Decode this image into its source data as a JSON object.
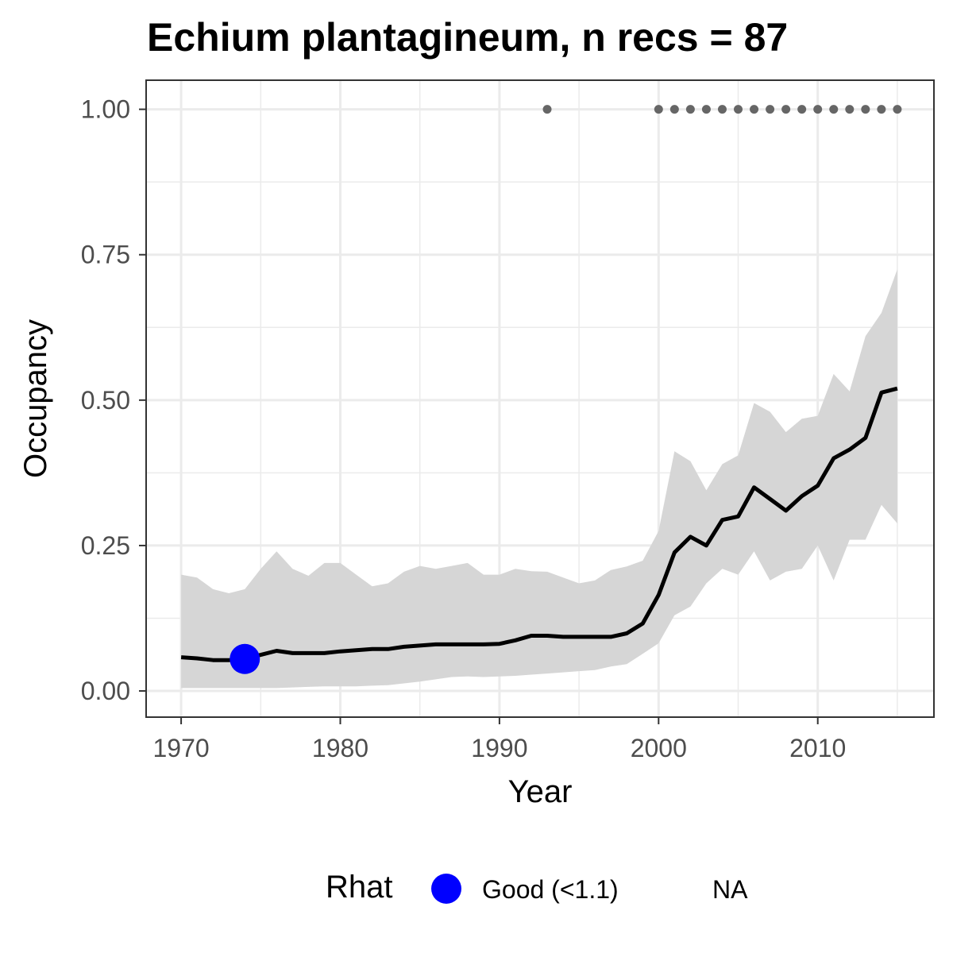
{
  "chart_data": {
    "type": "line",
    "title": "Echium plantagineum, n recs = 87",
    "xlabel": "Year",
    "ylabel": "Occupancy",
    "xlim": [
      1967.8,
      2017.3
    ],
    "ylim": [
      -0.045,
      1.05
    ],
    "x_ticks": [
      1970,
      1980,
      1990,
      2000,
      2010
    ],
    "y_ticks": [
      0,
      0.25,
      0.5,
      0.75,
      1.0
    ],
    "y_tick_labels": [
      "0.00",
      "0.25",
      "0.50",
      "0.75",
      "1.00"
    ],
    "grid": true,
    "x": [
      1970,
      1971,
      1972,
      1973,
      1974,
      1975,
      1976,
      1977,
      1978,
      1979,
      1980,
      1981,
      1982,
      1983,
      1984,
      1985,
      1986,
      1987,
      1988,
      1989,
      1990,
      1991,
      1992,
      1993,
      1994,
      1995,
      1996,
      1997,
      1998,
      1999,
      2000,
      2001,
      2002,
      2003,
      2004,
      2005,
      2006,
      2007,
      2008,
      2009,
      2010,
      2011,
      2012,
      2013,
      2014,
      2015
    ],
    "series": [
      {
        "mean": [
          0.058,
          0.056,
          0.053,
          0.053,
          0.055,
          0.062,
          0.069,
          0.065,
          0.065,
          0.065,
          0.068,
          0.07,
          0.072,
          0.072,
          0.076,
          0.078,
          0.08,
          0.08,
          0.08,
          0.08,
          0.081,
          0.087,
          0.095,
          0.095,
          0.093,
          0.093,
          0.093,
          0.093,
          0.099,
          0.116,
          0.165,
          0.238,
          0.265,
          0.25,
          0.294,
          0.3,
          0.35,
          0.33,
          0.31,
          0.335,
          0.353,
          0.4,
          0.415,
          0.435,
          0.513,
          0.52
        ],
        "lower": [
          0.005,
          0.005,
          0.005,
          0.005,
          0.005,
          0.005,
          0.005,
          0.006,
          0.007,
          0.008,
          0.008,
          0.008,
          0.009,
          0.01,
          0.013,
          0.016,
          0.02,
          0.024,
          0.025,
          0.024,
          0.025,
          0.026,
          0.028,
          0.03,
          0.032,
          0.034,
          0.036,
          0.042,
          0.046,
          0.064,
          0.082,
          0.13,
          0.145,
          0.185,
          0.21,
          0.2,
          0.24,
          0.19,
          0.205,
          0.21,
          0.25,
          0.19,
          0.26,
          0.26,
          0.32,
          0.288
        ],
        "upper": [
          0.2,
          0.195,
          0.175,
          0.168,
          0.175,
          0.21,
          0.24,
          0.21,
          0.198,
          0.22,
          0.22,
          0.2,
          0.18,
          0.185,
          0.205,
          0.215,
          0.21,
          0.215,
          0.22,
          0.2,
          0.2,
          0.21,
          0.206,
          0.205,
          0.195,
          0.185,
          0.19,
          0.208,
          0.214,
          0.224,
          0.275,
          0.412,
          0.395,
          0.345,
          0.39,
          0.405,
          0.495,
          0.48,
          0.445,
          0.468,
          0.473,
          0.545,
          0.515,
          0.61,
          0.65,
          0.725
        ]
      }
    ],
    "detection_points": {
      "x": [
        1993,
        2000,
        2001,
        2002,
        2003,
        2004,
        2005,
        2006,
        2007,
        2008,
        2009,
        2010,
        2011,
        2012,
        2013,
        2014,
        2015
      ],
      "y": 1.0,
      "color": "#666666"
    },
    "rhat_points": [
      {
        "x": 1974,
        "y": 0.055,
        "status": "Good (<1.1)"
      }
    ],
    "colors": {
      "line": "#000000",
      "ribbon": "#d6d6d6",
      "rhat_good": "#0000ff",
      "grid": "#ebebeb",
      "panel_border": "#333333"
    },
    "legend": {
      "title": "Rhat",
      "items": [
        {
          "label": "Good (<1.1)",
          "color": "#0000ff"
        },
        {
          "label": "NA"
        }
      ],
      "position": "bottom"
    }
  }
}
